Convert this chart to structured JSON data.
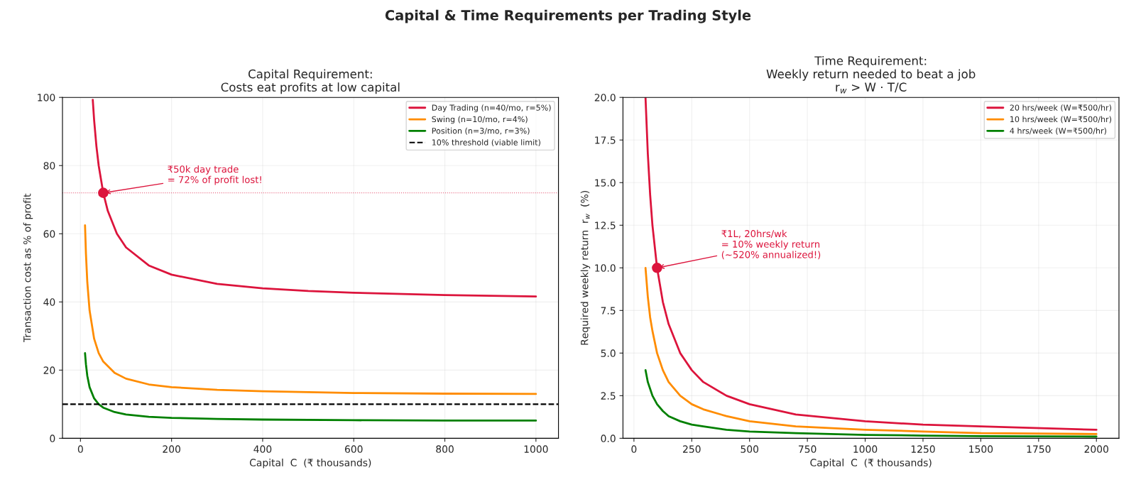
{
  "chart_data": [
    {
      "type": "line",
      "title": "Capital Requirement:\nCosts eat profits at low capital",
      "xlabel": "Capital  C  (₹ thousands)",
      "ylabel": "Transaction cost as % of profit",
      "annotations": [
        "Capital & Time Requirements per Trading Style",
        {
          "text": "₹50k day trade\n= 72% of profit lost!",
          "x": 50,
          "y": 72
        }
      ],
      "xlim": [
        -39.5,
        1049.5
      ],
      "xticks": [
        0,
        200,
        400,
        600,
        800,
        1000
      ],
      "ylim": [
        0,
        100
      ],
      "yticks": [
        0,
        20,
        40,
        60,
        80,
        100
      ],
      "grid": true,
      "legend": "top right",
      "series": [
        {
          "name": "Day Trading (n=40/mo, r=5%)",
          "color": "#dc143c",
          "x": [
            27,
            30,
            35,
            40,
            50,
            60,
            80,
            100,
            150,
            200,
            300,
            400,
            500,
            600,
            800,
            1000
          ],
          "values": [
            99.3,
            93.3,
            85.7,
            80,
            72,
            66.7,
            60,
            56,
            50.7,
            48,
            45.3,
            44,
            43.2,
            42.7,
            42,
            41.6
          ]
        },
        {
          "name": "Swing (n=10/mo, r=4%)",
          "color": "#ff8c00",
          "x": [
            10,
            12,
            15,
            20,
            30,
            40,
            50,
            75,
            100,
            150,
            200,
            300,
            400,
            600,
            800,
            1000
          ],
          "values": [
            62.5,
            54.2,
            45.8,
            37.5,
            29.2,
            25,
            22.5,
            19.2,
            17.5,
            15.8,
            15,
            14.2,
            13.8,
            13.3,
            13.1,
            13
          ]
        },
        {
          "name": "Position (n=3/mo, r=3%)",
          "color": "#008000",
          "x": [
            10,
            12,
            15,
            20,
            30,
            40,
            50,
            75,
            100,
            150,
            200,
            300,
            400,
            600,
            800,
            1000
          ],
          "values": [
            25,
            21.7,
            18.3,
            15,
            11.7,
            10,
            9,
            7.7,
            7,
            6.3,
            6,
            5.7,
            5.5,
            5.3,
            5.2,
            5.2
          ]
        },
        {
          "type": "scatter",
          "color": "#dc143c",
          "marker": "circle",
          "x": [
            50
          ],
          "values": [
            72
          ]
        }
      ],
      "ref_lines": [
        {
          "axis": "y",
          "value": 10,
          "label": "10% threshold (viable limit)",
          "color": "#000000",
          "line_style": "dashed"
        },
        {
          "axis": "y",
          "value": 72,
          "color": "#dc143c",
          "line_style": "dotted"
        }
      ]
    },
    {
      "type": "line",
      "title": "Time Requirement:\nWeekly return needed to beat a job\nr$_{w}$ > W · T/C",
      "xlabel": "Capital  C  (₹ thousands)",
      "ylabel": "Required weekly return  r$_{w}$  (%)",
      "annotations": [
        {
          "text": "₹1L, 20hrs/wk\n= 10% weekly return\n(~520% annualized!)",
          "x": 100,
          "y": 10
        }
      ],
      "xlim": [
        -47.5,
        2097.5
      ],
      "xticks": [
        0,
        250,
        500,
        750,
        1000,
        1250,
        1500,
        1750,
        2000
      ],
      "ylim": [
        0,
        20
      ],
      "yticks": [
        {
          "value": 0,
          "label": "0.0"
        },
        2.5,
        {
          "value": 5,
          "label": "5.0"
        },
        7.5,
        {
          "value": 10,
          "label": "10.0"
        },
        12.5,
        {
          "value": 15,
          "label": "15.0"
        },
        17.5,
        {
          "value": 20,
          "label": "20.0"
        }
      ],
      "grid": true,
      "legend": "top right",
      "series": [
        {
          "name": "20 hrs/week (W=₹500/hr)",
          "color": "#dc143c",
          "x": [
            50,
            60,
            70,
            80,
            100,
            125,
            150,
            200,
            250,
            300,
            400,
            500,
            700,
            1000,
            1250,
            1500,
            2000
          ],
          "values": [
            20,
            16.7,
            14.3,
            12.5,
            10,
            8,
            6.7,
            5,
            4,
            3.3,
            2.5,
            2,
            1.4,
            1,
            0.8,
            0.7,
            0.5
          ]
        },
        {
          "name": "10 hrs/week (W=₹500/hr)",
          "color": "#ff8c00",
          "x": [
            50,
            60,
            70,
            80,
            100,
            125,
            150,
            200,
            250,
            300,
            400,
            500,
            700,
            1000,
            1250,
            1500,
            2000
          ],
          "values": [
            10,
            8.3,
            7.1,
            6.3,
            5,
            4,
            3.3,
            2.5,
            2,
            1.7,
            1.3,
            1,
            0.7,
            0.5,
            0.4,
            0.3,
            0.25
          ]
        },
        {
          "name": "4 hrs/week (W=₹500/hr)",
          "color": "#008000",
          "x": [
            50,
            60,
            70,
            80,
            100,
            125,
            150,
            200,
            250,
            300,
            400,
            500,
            700,
            1000,
            1250,
            1500,
            2000
          ],
          "values": [
            4,
            3.3,
            2.9,
            2.5,
            2,
            1.6,
            1.3,
            1,
            0.8,
            0.7,
            0.5,
            0.4,
            0.3,
            0.2,
            0.16,
            0.13,
            0.1
          ]
        },
        {
          "type": "scatter",
          "color": "#dc143c",
          "marker": "circle",
          "x": [
            100
          ],
          "values": [
            10
          ]
        }
      ]
    }
  ]
}
